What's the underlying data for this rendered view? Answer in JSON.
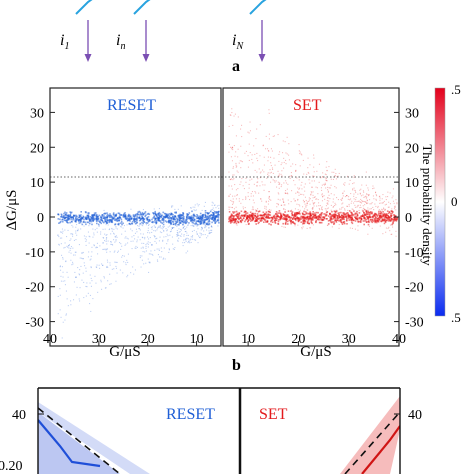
{
  "top_panel": {
    "currents": [
      {
        "main": "i",
        "sub": "1"
      },
      {
        "main": "i",
        "sub": "n"
      },
      {
        "main": "i",
        "sub": "N"
      }
    ],
    "panel_label": "a",
    "arrow_color": "#7b4fb3",
    "wire_color": "#29a3df"
  },
  "middle_panel": {
    "panel_label": "b",
    "reset_label": "RESET",
    "set_label": "SET",
    "reset_color": "#1f5fd6",
    "set_color": "#e31a1c",
    "ylabel": "ΔG/μS",
    "xlabel_left": "G/μS",
    "xlabel_right": "G/μS",
    "colorbar_label": "The probability density",
    "colorbar_ticks": [
      ".5",
      "0",
      ".5"
    ]
  },
  "bottom_panel": {
    "reset_label": "RESET",
    "set_label": "SET",
    "left_tick": "40",
    "right_tick": "40",
    "partial_tick": "0.20"
  },
  "chart_data": [
    {
      "type": "scatter",
      "name": "RESET",
      "xlabel": "G/μS",
      "ylabel": "ΔG/μS",
      "xlim": [
        40,
        5
      ],
      "ylim": [
        -37,
        37
      ],
      "x_ticks": [
        40,
        30,
        20,
        10
      ],
      "y_ticks": [
        30,
        20,
        10,
        0,
        -10,
        -20,
        -30
      ],
      "x_reversed": true,
      "description_values": {
        "band_center_dG": [
          {
            "G": 38,
            "dG": 0
          },
          {
            "G": 30,
            "dG": 0
          },
          {
            "G": 20,
            "dG": 0
          },
          {
            "G": 10,
            "dG": 0
          },
          {
            "G": 6,
            "dG": 0
          }
        ],
        "upper_spread_dG": [
          {
            "G": 38,
            "dG": 1
          },
          {
            "G": 30,
            "dG": 2
          },
          {
            "G": 20,
            "dG": 3
          },
          {
            "G": 10,
            "dG": 4
          },
          {
            "G": 6,
            "dG": 5
          }
        ],
        "lower_spread_dG": [
          {
            "G": 38,
            "dG": -30
          },
          {
            "G": 30,
            "dG": -22
          },
          {
            "G": 20,
            "dG": -14
          },
          {
            "G": 10,
            "dG": -7
          },
          {
            "G": 6,
            "dG": -4
          }
        ]
      }
    },
    {
      "type": "scatter",
      "name": "SET",
      "xlabel": "G/μS",
      "ylabel": "ΔG/μS",
      "xlim": [
        5,
        40
      ],
      "ylim": [
        -37,
        37
      ],
      "x_ticks": [
        10,
        20,
        30,
        40
      ],
      "description_values": {
        "band_center_dG": [
          {
            "G": 6,
            "dG": 0
          },
          {
            "G": 15,
            "dG": 0
          },
          {
            "G": 25,
            "dG": 0
          },
          {
            "G": 35,
            "dG": 0
          },
          {
            "G": 40,
            "dG": 0
          }
        ],
        "upper_spread_dG": [
          {
            "G": 6,
            "dG": 32
          },
          {
            "G": 15,
            "dG": 24
          },
          {
            "G": 25,
            "dG": 16
          },
          {
            "G": 35,
            "dG": 9
          },
          {
            "G": 40,
            "dG": 6
          }
        ],
        "lower_spread_dG": [
          {
            "G": 6,
            "dG": -2
          },
          {
            "G": 15,
            "dG": -3
          },
          {
            "G": 25,
            "dG": -4
          },
          {
            "G": 35,
            "dG": -5
          },
          {
            "G": 40,
            "dG": -6
          }
        ]
      }
    }
  ]
}
